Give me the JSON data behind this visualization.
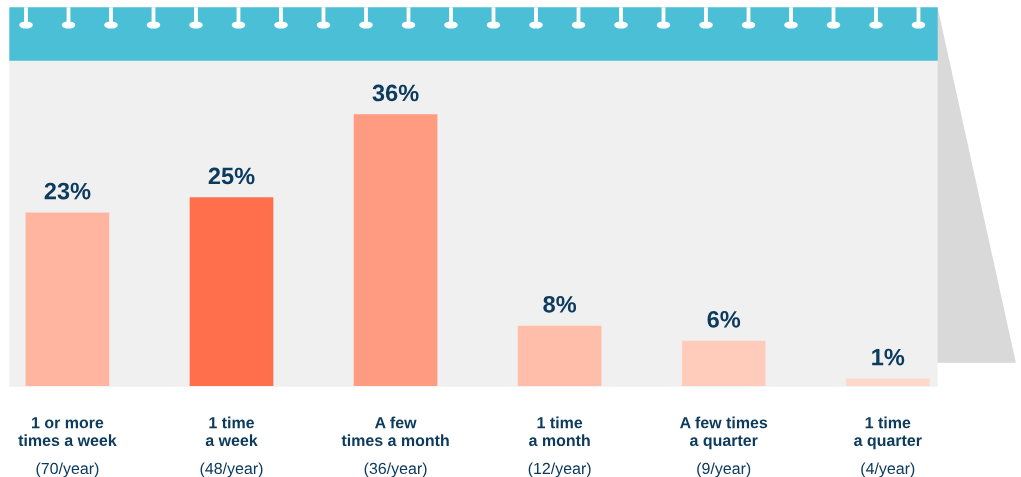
{
  "chart_data": {
    "type": "bar",
    "categories": [
      "1 or more\ntimes a week\n(70/year)",
      "1 time\na week\n(48/year)",
      "A few\ntimes a month\n(36/year)",
      "1 time\na month\n(12/year)",
      "A few times\na quarter\n(9/year)",
      "1 time\na quarter\n(4/year)"
    ],
    "values": [
      23,
      25,
      36,
      8,
      6,
      1
    ],
    "value_labels": [
      "23%",
      "25%",
      "36%",
      "8%",
      "6%",
      "1%"
    ],
    "colors": [
      "#ffb59f",
      "#ff6f4b",
      "#ff9b80",
      "#ffbea9",
      "#ffcbba",
      "#ffd8cb"
    ]
  }
}
